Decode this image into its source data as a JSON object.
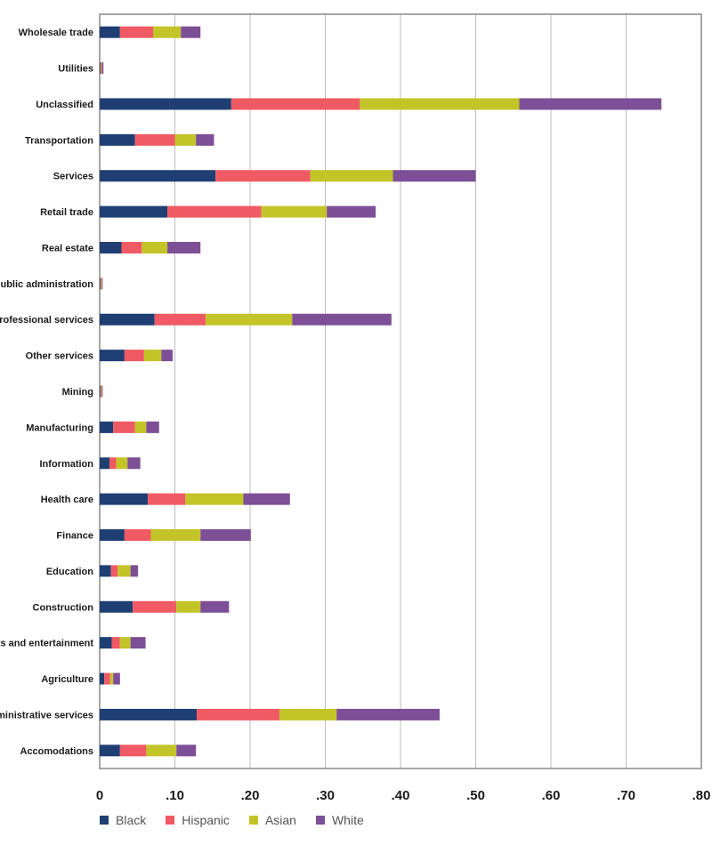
{
  "chart_data": {
    "type": "bar",
    "orientation": "horizontal",
    "stacked": true,
    "title": "",
    "xlabel": "",
    "ylabel": "",
    "xlim": [
      0,
      0.8
    ],
    "x_ticks": [
      "0",
      ".10",
      ".20",
      ".30",
      ".40",
      ".50",
      ".60",
      ".70",
      ".80"
    ],
    "grid": "vertical",
    "legend_position": "bottom-left",
    "categories": [
      "Wholesale trade",
      "Utilities",
      "Unclassified",
      "Transportation",
      "Services",
      "Retail trade",
      "Real estate",
      "Public administration",
      "Professional services",
      "Other services",
      "Mining",
      "Manufacturing",
      "Information",
      "Health care",
      "Finance",
      "Education",
      "Construction",
      "Arts and entertainment",
      "Agriculture",
      "Administrative services",
      "Accomodations"
    ],
    "series": [
      {
        "name": "Black",
        "color": "#1f3f73",
        "values": [
          0.027,
          0.001,
          0.175,
          0.047,
          0.154,
          0.09,
          0.029,
          0.001,
          0.073,
          0.033,
          0.001,
          0.018,
          0.013,
          0.064,
          0.033,
          0.015,
          0.044,
          0.016,
          0.006,
          0.129,
          0.027
        ]
      },
      {
        "name": "Hispanic",
        "color": "#f05a64",
        "values": [
          0.044,
          0.001,
          0.171,
          0.053,
          0.126,
          0.125,
          0.027,
          0.001,
          0.068,
          0.026,
          0.001,
          0.029,
          0.009,
          0.05,
          0.035,
          0.009,
          0.058,
          0.011,
          0.008,
          0.11,
          0.035
        ]
      },
      {
        "name": "Asian",
        "color": "#c3c428",
        "values": [
          0.037,
          0.001,
          0.212,
          0.028,
          0.11,
          0.087,
          0.034,
          0.001,
          0.115,
          0.023,
          0.001,
          0.015,
          0.015,
          0.077,
          0.066,
          0.017,
          0.032,
          0.014,
          0.004,
          0.076,
          0.04
        ]
      },
      {
        "name": "White",
        "color": "#7d4f96",
        "values": [
          0.026,
          0.002,
          0.189,
          0.024,
          0.11,
          0.065,
          0.044,
          0.001,
          0.132,
          0.015,
          0.001,
          0.017,
          0.017,
          0.062,
          0.067,
          0.01,
          0.038,
          0.02,
          0.009,
          0.137,
          0.026
        ]
      }
    ]
  }
}
